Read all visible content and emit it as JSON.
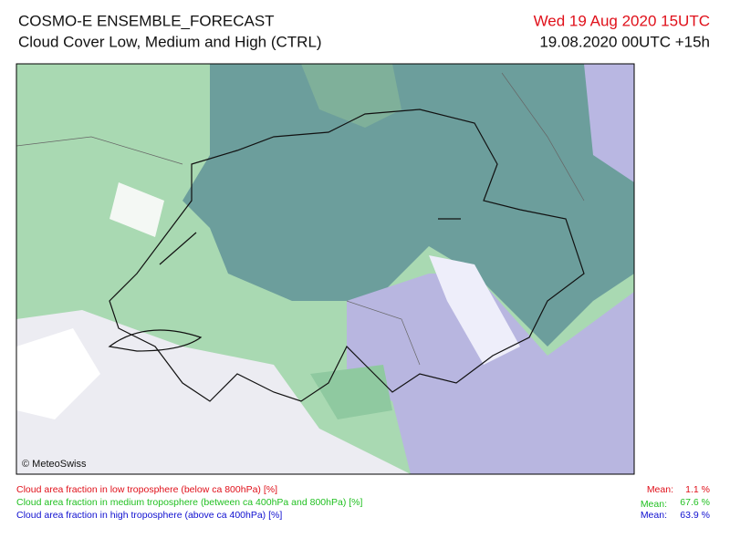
{
  "header": {
    "title": "COSMO-E ENSEMBLE_FORECAST",
    "subtitle": "Cloud Cover Low, Medium and High (CTRL)",
    "valid_time": "Wed 19 Aug 2020 15UTC",
    "run": "19.08.2020 00UTC +15h"
  },
  "map": {
    "credit": "© MeteoSwiss"
  },
  "legend": [
    {
      "label": "Cloud area fraction in low troposphere (below ca 800hPa) [%]",
      "mean_label": "Mean:",
      "mean": "1.1 %"
    },
    {
      "label": "Cloud area fraction in medium troposphere (between ca 400hPa and 800hPa) [%]",
      "mean_label": "Mean:",
      "mean": "67.6 %"
    },
    {
      "label": "Cloud area fraction in high troposphere (above ca 400hPa) [%]",
      "mean_label": "Mean:",
      "mean": "63.9 %"
    }
  ]
}
